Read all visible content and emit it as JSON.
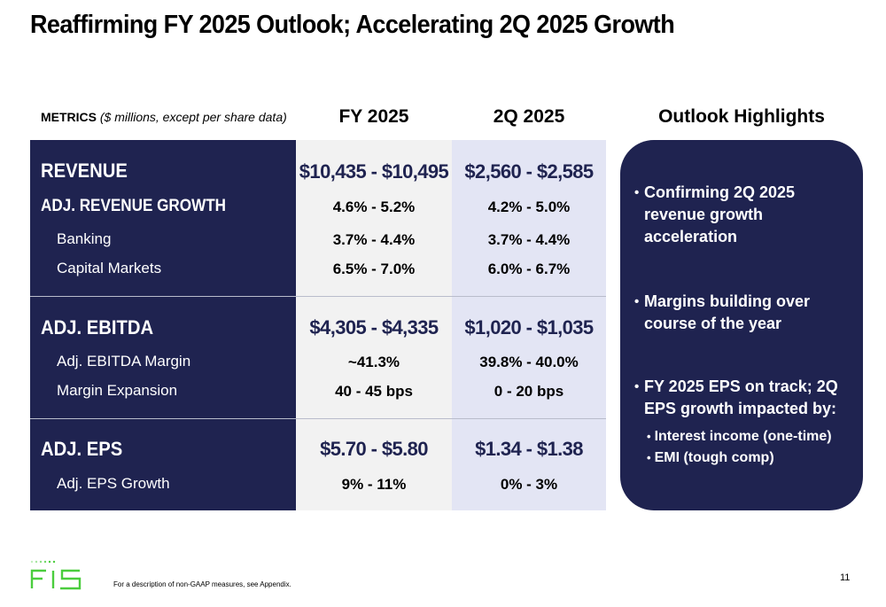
{
  "title": "Reaffirming FY 2025 Outlook; Accelerating 2Q 2025 Growth",
  "metrics_header": {
    "bold": "METRICS",
    "italic": "($ millions, except per share data)"
  },
  "columns": {
    "fy": "FY 2025",
    "q2": "2Q 2025",
    "outlook": "Outlook Highlights"
  },
  "rows": [
    {
      "label": "REVENUE",
      "fy": "$10,435 - $10,495",
      "q2": "$2,560 - $2,585"
    },
    {
      "label": "ADJ. REVENUE GROWTH",
      "fy": "4.6% - 5.2%",
      "q2": "4.2% - 5.0%"
    },
    {
      "label": "Banking",
      "fy": "3.7% - 4.4%",
      "q2": "3.7% - 4.4%"
    },
    {
      "label": "Capital Markets",
      "fy": "6.5% - 7.0%",
      "q2": "6.0% - 6.7%"
    },
    {
      "label": "ADJ. EBITDA",
      "fy": "$4,305 - $4,335",
      "q2": "$1,020 - $1,035"
    },
    {
      "label": "Adj. EBITDA Margin",
      "fy": "~41.3%",
      "q2": "39.8% - 40.0%"
    },
    {
      "label": "Margin Expansion",
      "fy": "40 - 45 bps",
      "q2": "0 - 20 bps"
    },
    {
      "label": "ADJ. EPS",
      "fy": "$5.70 - $5.80",
      "q2": "$1.34 - $1.38"
    },
    {
      "label": "Adj. EPS Growth",
      "fy": "9% - 11%",
      "q2": "0% - 3%"
    }
  ],
  "outlook": {
    "bullets": [
      "Confirming 2Q 2025 revenue growth acceleration",
      "Margins building over course of the year",
      "FY 2025 EPS on track; 2Q EPS growth impacted by:"
    ],
    "sub_bullets": [
      "Interest income (one-time)",
      "EMI (tough comp)"
    ]
  },
  "bullet_glyph": "•",
  "footnote": "For a description of non-GAAP measures, see Appendix.",
  "page_number": "11",
  "logo_text": "FIS",
  "colors": {
    "navy": "#1f2350",
    "fy_bg": "#f2f2f2",
    "q2_bg": "#e3e5f4",
    "brand_green": "#4bcd3e"
  }
}
